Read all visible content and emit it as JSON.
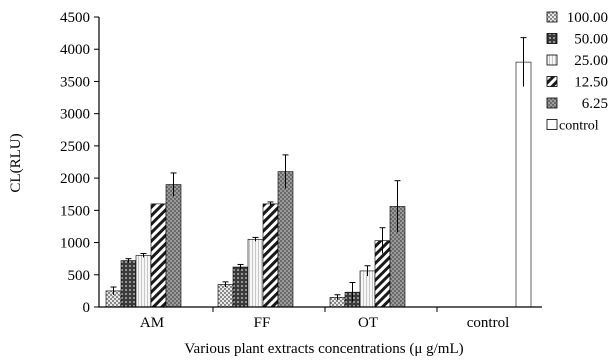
{
  "chart_data": {
    "type": "bar",
    "title": "",
    "xlabel": "Various plant extracts concentrations (μ g/mL)",
    "ylabel": "CL(RLU)",
    "ylim": [
      0,
      4500
    ],
    "yticks": [
      0,
      500,
      1000,
      1500,
      2000,
      2500,
      3000,
      3500,
      4000,
      4500
    ],
    "grid": false,
    "legend_placement": "right",
    "categories": [
      "AM",
      "FF",
      "OT",
      "control"
    ],
    "series": [
      {
        "name": "100.00",
        "pattern": "checker-light",
        "values": [
          250,
          350,
          150,
          null
        ],
        "errors": [
          60,
          40,
          40,
          null
        ]
      },
      {
        "name": "50.00",
        "pattern": "dots-dark",
        "values": [
          720,
          620,
          230,
          null
        ],
        "errors": [
          30,
          40,
          150,
          null
        ]
      },
      {
        "name": "25.00",
        "pattern": "vlines-light",
        "values": [
          800,
          1050,
          560,
          null
        ],
        "errors": [
          30,
          30,
          80,
          null
        ]
      },
      {
        "name": "12.50",
        "pattern": "diagonal",
        "values": [
          1600,
          1600,
          1030,
          null
        ],
        "errors": [
          0,
          30,
          200,
          null
        ]
      },
      {
        "name": "6.25",
        "pattern": "checker-dark",
        "values": [
          1900,
          2100,
          1560,
          null
        ],
        "errors": [
          180,
          260,
          400,
          null
        ]
      },
      {
        "name": "control",
        "pattern": "white",
        "values": [
          null,
          null,
          null,
          3800
        ],
        "errors": [
          null,
          null,
          null,
          380
        ]
      }
    ]
  }
}
